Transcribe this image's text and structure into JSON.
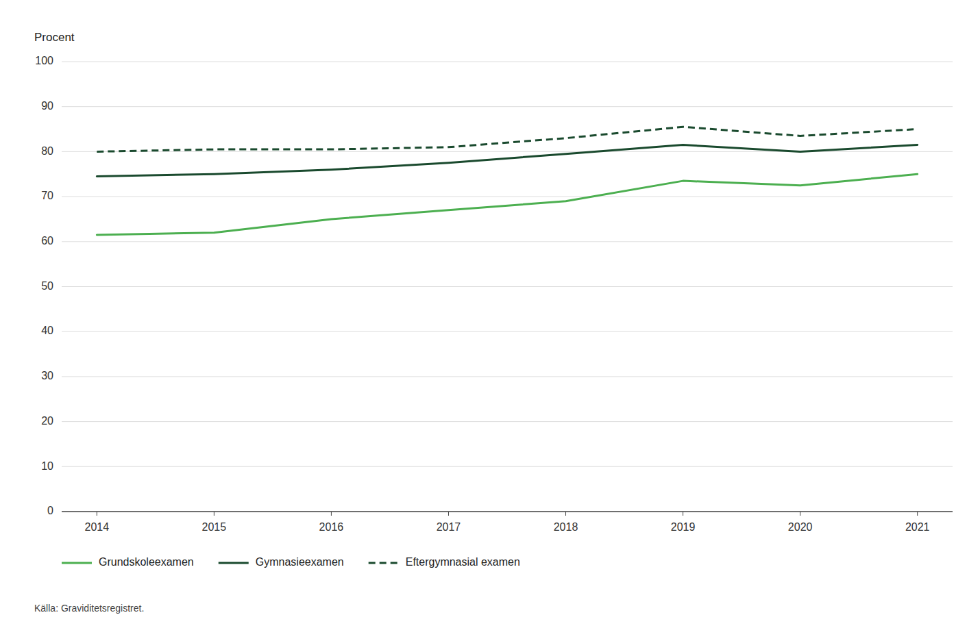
{
  "chart_data": {
    "type": "line",
    "y_label": "Procent",
    "annotations": [
      "Källa: Graviditetsregistret."
    ],
    "x": [
      2014,
      2015,
      2016,
      2017,
      2018,
      2019,
      2020,
      2021
    ],
    "series": [
      {
        "name": "Grundskoleexamen",
        "color": "#4caf50",
        "line_style": "solid",
        "values": [
          61.5,
          62.0,
          65.0,
          67.0,
          69.0,
          73.5,
          72.5,
          75.0
        ]
      },
      {
        "name": "Gymnasieexamen",
        "color": "#1a4a2e",
        "line_style": "solid",
        "values": [
          74.5,
          75.0,
          76.0,
          77.5,
          79.5,
          81.5,
          80.0,
          81.5
        ]
      },
      {
        "name": "Eftergymnasial examen",
        "color": "#1a4a2e",
        "line_style": "dashed",
        "values": [
          80.0,
          80.5,
          80.5,
          81.0,
          83.0,
          85.5,
          83.5,
          85.0
        ]
      }
    ],
    "xlim": [
      2013.7,
      2021.3
    ],
    "xticks": [
      2014,
      2015,
      2016,
      2017,
      2018,
      2019,
      2020,
      2021
    ],
    "ylim": [
      0,
      100
    ],
    "yticks": [
      0,
      10,
      20,
      30,
      40,
      50,
      60,
      70,
      80,
      90,
      100
    ],
    "grid": true,
    "legend": "bottom"
  }
}
